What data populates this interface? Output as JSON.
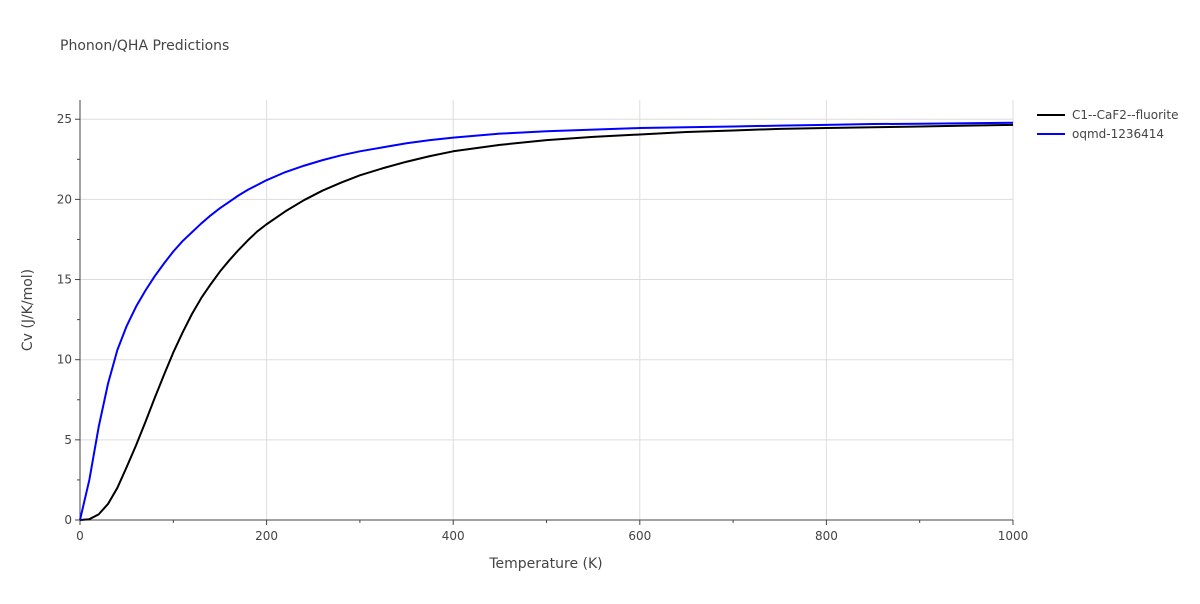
{
  "chart_data": {
    "type": "line",
    "title": "Phonon/QHA Predictions",
    "xlabel": "Temperature (K)",
    "ylabel": "Cv (J/K/mol)",
    "xlim": [
      0,
      1000
    ],
    "ylim": [
      0,
      26.2
    ],
    "x_ticks": [
      0,
      200,
      400,
      600,
      800,
      1000
    ],
    "y_ticks": [
      0,
      5,
      10,
      15,
      20,
      25
    ],
    "grid": true,
    "legend_position": "top-right, outside plot",
    "series": [
      {
        "name": "C1--CaF2--fluorite",
        "color": "#000000",
        "x": [
          0,
          10,
          20,
          30,
          40,
          50,
          60,
          70,
          80,
          90,
          100,
          110,
          120,
          130,
          140,
          150,
          160,
          170,
          180,
          190,
          200,
          220,
          240,
          260,
          280,
          300,
          325,
          350,
          375,
          400,
          450,
          500,
          550,
          600,
          650,
          700,
          750,
          800,
          850,
          900,
          950,
          1000
        ],
        "y": [
          0,
          0.05,
          0.35,
          1.0,
          2.0,
          3.3,
          4.65,
          6.1,
          7.6,
          9.05,
          10.45,
          11.7,
          12.85,
          13.85,
          14.7,
          15.5,
          16.2,
          16.85,
          17.45,
          18.0,
          18.45,
          19.25,
          19.95,
          20.55,
          21.05,
          21.5,
          21.95,
          22.35,
          22.7,
          23.0,
          23.4,
          23.7,
          23.9,
          24.05,
          24.2,
          24.3,
          24.4,
          24.45,
          24.5,
          24.55,
          24.6,
          24.65
        ]
      },
      {
        "name": "oqmd-1236414",
        "color": "#0000ff",
        "x": [
          0,
          10,
          20,
          30,
          40,
          50,
          60,
          70,
          80,
          90,
          100,
          110,
          120,
          130,
          140,
          150,
          160,
          170,
          180,
          190,
          200,
          220,
          240,
          260,
          280,
          300,
          325,
          350,
          375,
          400,
          450,
          500,
          550,
          600,
          650,
          700,
          750,
          800,
          850,
          900,
          950,
          1000
        ],
        "y": [
          0,
          2.5,
          5.8,
          8.5,
          10.6,
          12.1,
          13.3,
          14.3,
          15.2,
          16.0,
          16.75,
          17.4,
          17.95,
          18.5,
          19.0,
          19.45,
          19.85,
          20.25,
          20.6,
          20.9,
          21.2,
          21.7,
          22.1,
          22.45,
          22.75,
          23.0,
          23.25,
          23.5,
          23.7,
          23.85,
          24.1,
          24.25,
          24.35,
          24.45,
          24.5,
          24.55,
          24.6,
          24.65,
          24.7,
          24.72,
          24.75,
          24.78
        ]
      }
    ]
  }
}
